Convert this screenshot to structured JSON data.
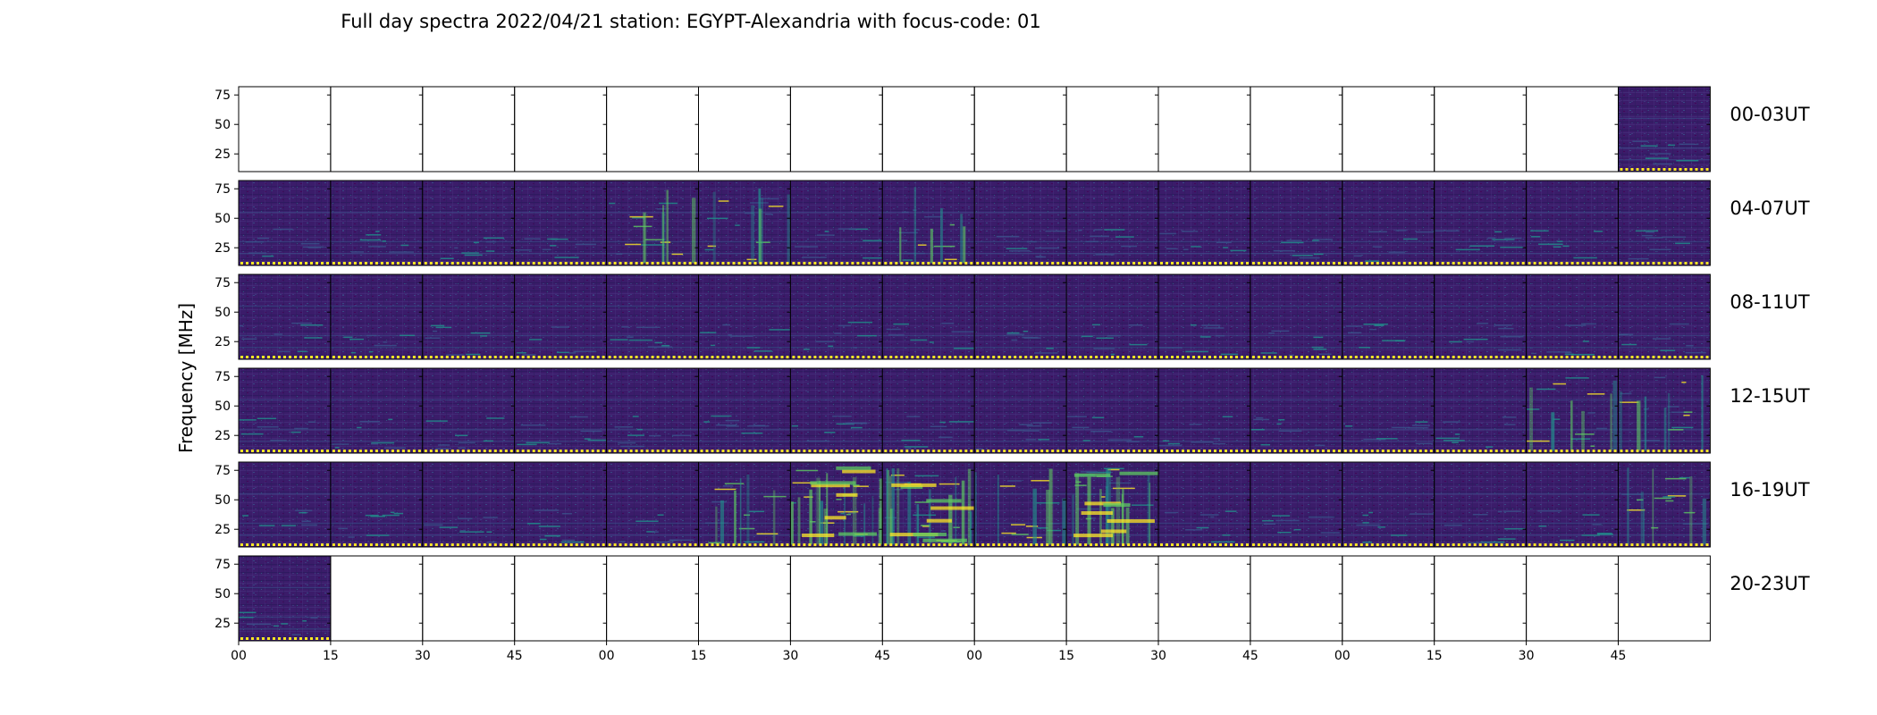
{
  "chart_data": {
    "type": "heatmap",
    "title": "Full day spectra 2022/04/21 station: EGYPT-Alexandria with focus-code: 01",
    "ylabel": "Frequency [MHz]",
    "y_ticks": [
      "75",
      "50",
      "25"
    ],
    "y_tick_values": [
      75,
      50,
      25
    ],
    "ylim": [
      10,
      82
    ],
    "x_ticks": [
      "00",
      "15",
      "30",
      "45",
      "00",
      "15",
      "30",
      "45",
      "00",
      "15",
      "30",
      "45",
      "00",
      "15",
      "30",
      "45"
    ],
    "row_labels": [
      "00-03UT",
      "04-07UT",
      "08-11UT",
      "12-15UT",
      "16-19UT",
      "20-23UT"
    ],
    "panels_per_row": 16,
    "panel_duration_minutes": 15,
    "colormap": [
      "#440154",
      "#3b528b",
      "#21918c",
      "#5ec962",
      "#fde725"
    ],
    "background_color": "#3b1c6a",
    "data_present": [
      [
        0,
        0,
        0,
        0,
        0,
        0,
        0,
        0,
        0,
        0,
        0,
        0,
        0,
        0,
        0,
        1
      ],
      [
        1,
        1,
        1,
        1,
        1,
        1,
        1,
        1,
        1,
        1,
        1,
        1,
        1,
        1,
        1,
        1
      ],
      [
        1,
        1,
        1,
        1,
        1,
        1,
        1,
        1,
        1,
        1,
        1,
        1,
        1,
        1,
        1,
        1
      ],
      [
        1,
        1,
        1,
        1,
        1,
        1,
        1,
        1,
        1,
        1,
        1,
        1,
        1,
        1,
        1,
        1
      ],
      [
        1,
        1,
        1,
        1,
        1,
        1,
        1,
        1,
        1,
        1,
        1,
        1,
        1,
        1,
        1,
        1
      ],
      [
        1,
        0,
        0,
        0,
        0,
        0,
        0,
        0,
        0,
        0,
        0,
        0,
        0,
        0,
        0,
        0
      ]
    ],
    "activity_level": [
      [
        0,
        0,
        0,
        0,
        0,
        0,
        0,
        0,
        0,
        0,
        0,
        0,
        0,
        0,
        0,
        1
      ],
      [
        1,
        1,
        1,
        1,
        2,
        2,
        1,
        2,
        1,
        1,
        1,
        1,
        1,
        1,
        1,
        1
      ],
      [
        1,
        1,
        1,
        1,
        1,
        1,
        1,
        1,
        1,
        1,
        1,
        1,
        1,
        1,
        1,
        1
      ],
      [
        1,
        1,
        1,
        1,
        1,
        1,
        1,
        1,
        1,
        1,
        1,
        1,
        1,
        1,
        2,
        2
      ],
      [
        1,
        1,
        1,
        1,
        1,
        2,
        3,
        3,
        2,
        3,
        1,
        1,
        1,
        1,
        1,
        2
      ],
      [
        1,
        0,
        0,
        0,
        0,
        0,
        0,
        0,
        0,
        0,
        0,
        0,
        0,
        0,
        0,
        0
      ]
    ]
  }
}
